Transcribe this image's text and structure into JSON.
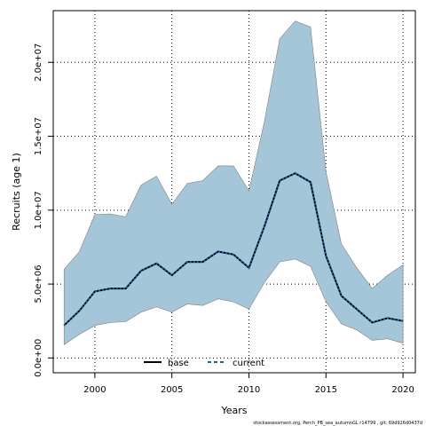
{
  "chart_data": {
    "type": "area",
    "xlabel": "Years",
    "ylabel": "Recruits (age 1)",
    "xlim": [
      1997.3,
      2020.8
    ],
    "ylim": [
      -1000000,
      23500000
    ],
    "x_ticks": [
      2000,
      2005,
      2010,
      2015,
      2020
    ],
    "x_tick_labels": [
      "2000",
      "2005",
      "2010",
      "2015",
      "2020"
    ],
    "y_ticks": [
      0,
      5000000,
      10000000,
      15000000,
      20000000
    ],
    "y_tick_labels": [
      "0.0e+00",
      "5.0e+06",
      "1.0e+07",
      "1.5e+07",
      "2.0e+07"
    ],
    "grid": true,
    "legend_position": "bottom-center",
    "x": [
      1998,
      1999,
      2000,
      2001,
      2002,
      2003,
      2004,
      2005,
      2006,
      2007,
      2008,
      2009,
      2010,
      2011,
      2012,
      2013,
      2014,
      2015,
      2016,
      2017,
      2018,
      2019,
      2020
    ],
    "band": {
      "upper": [
        6000000,
        7200000,
        9700000,
        9750000,
        9550000,
        11700000,
        12300000,
        10400000,
        11800000,
        12000000,
        13000000,
        13000000,
        11300000,
        16000000,
        21600000,
        22800000,
        22400000,
        12600000,
        7700000,
        6100000,
        4700000,
        5600000,
        6300000
      ],
      "lower": [
        900000,
        1600000,
        2200000,
        2400000,
        2450000,
        3100000,
        3450000,
        3100000,
        3650000,
        3550000,
        4000000,
        3800000,
        3300000,
        5100000,
        6500000,
        6700000,
        6200000,
        3800000,
        2300000,
        1900000,
        1200000,
        1300000,
        1000000
      ],
      "color": "#a5c6d9",
      "edge_color": "#808080"
    },
    "series": [
      {
        "name": "base",
        "color": "#000000",
        "style": "solid",
        "values": [
          2200000,
          3200000,
          4500000,
          4700000,
          4700000,
          5900000,
          6400000,
          5600000,
          6500000,
          6500000,
          7200000,
          7000000,
          6100000,
          8900000,
          12000000,
          12500000,
          11900000,
          6900000,
          4200000,
          3300000,
          2400000,
          2700000,
          2500000
        ]
      },
      {
        "name": "current",
        "color": "#1464a0",
        "style": "dashed",
        "values": [
          2200000,
          3200000,
          4500000,
          4700000,
          4700000,
          5900000,
          6400000,
          5600000,
          6500000,
          6500000,
          7200000,
          7000000,
          6100000,
          8900000,
          12000000,
          12500000,
          11900000,
          6900000,
          4200000,
          3300000,
          2400000,
          2700000,
          2500000
        ]
      }
    ],
    "footnote": "stockassessment.org, Perch_PB_sea_autumnGL r14799 , git: 69d926d0437d"
  }
}
